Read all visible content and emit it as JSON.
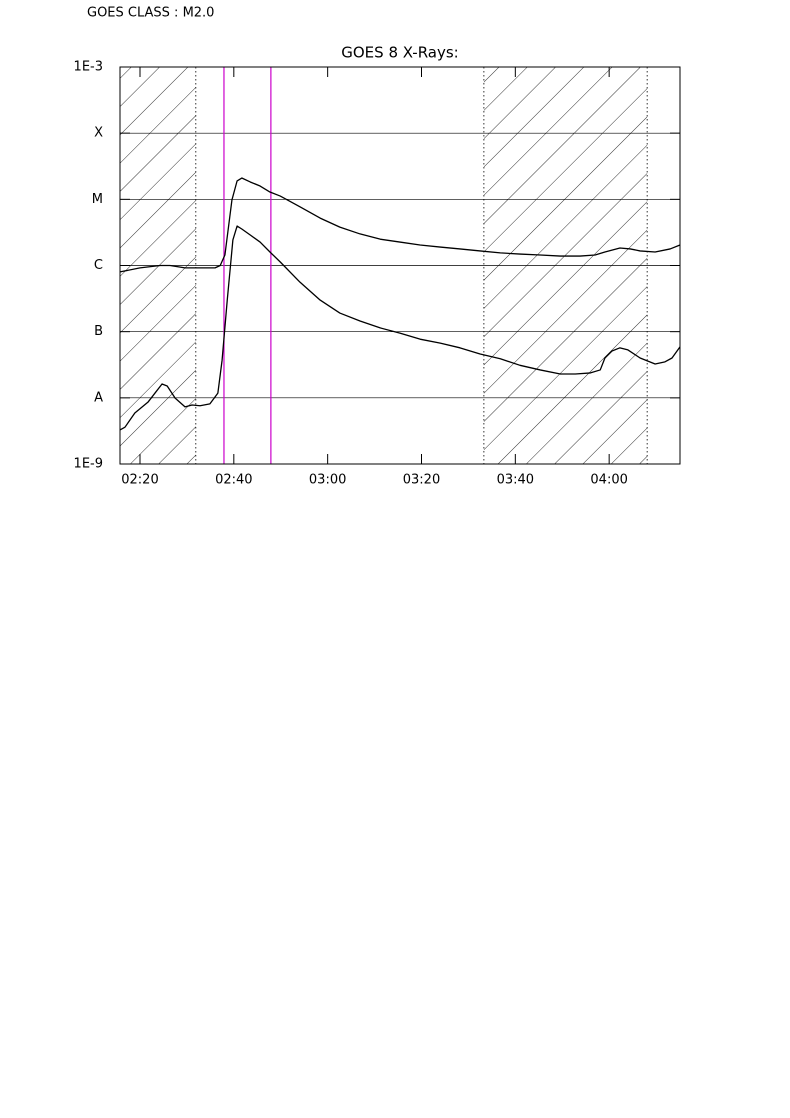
{
  "chart_data": {
    "type": "line",
    "header": "GOES CLASS : M2.0",
    "title": "GOES 8 X-Rays:",
    "log_y": true,
    "grid": true,
    "xlim": [
      15.74,
      135.1
    ],
    "xticks": [
      {
        "value": 20,
        "label": "02:20"
      },
      {
        "value": 40,
        "label": "02:40"
      },
      {
        "value": 60,
        "label": "03:00"
      },
      {
        "value": 80,
        "label": "03:20"
      },
      {
        "value": 100,
        "label": "03:40"
      },
      {
        "value": 120,
        "label": "04:00"
      }
    ],
    "ylim": [
      1e-09,
      0.001
    ],
    "yticks": [
      {
        "value": 1e-09,
        "label": "1E-9"
      },
      {
        "value": 1e-08,
        "label": "A"
      },
      {
        "value": 1e-07,
        "label": "B"
      },
      {
        "value": 1e-06,
        "label": "C"
      },
      {
        "value": 1e-05,
        "label": "M"
      },
      {
        "value": 0.0001,
        "label": "X"
      },
      {
        "value": 0.001,
        "label": "1E-3"
      }
    ],
    "shaded_regions": [
      [
        15.74,
        31.9
      ],
      [
        93.3,
        128.1
      ]
    ],
    "markers": [
      37.9,
      47.9
    ],
    "marker_color": "#cc00cc",
    "series": [
      {
        "color": "#000000",
        "x": [
          15.74,
          20,
          24.3,
          26.4,
          29.6,
          32.8,
          36.0,
          37.1,
          38.1,
          39.6,
          40.7,
          41.7,
          43.5,
          45.6,
          47.7,
          49.9,
          54.1,
          58.4,
          62.6,
          66.9,
          71.2,
          75.4,
          79.7,
          84.0,
          88.2,
          92.5,
          96.8,
          101.0,
          105.3,
          109.6,
          113.8,
          117.0,
          119.1,
          122.3,
          124.5,
          126.6,
          129.8,
          133.0,
          135.1
        ],
        "values": [
          8e-07,
          9.2e-07,
          1e-06,
          1e-06,
          9.2e-07,
          9.2e-07,
          9.2e-07,
          1e-06,
          1.44e-06,
          9.8e-06,
          1.9e-05,
          2.1e-05,
          1.83e-05,
          1.59e-05,
          1.29e-05,
          1.12e-05,
          7.7e-06,
          5.2e-06,
          3.8e-06,
          3e-06,
          2.5e-06,
          2.26e-06,
          2.04e-06,
          1.9e-06,
          1.78e-06,
          1.66e-06,
          1.55e-06,
          1.49e-06,
          1.44e-06,
          1.39e-06,
          1.39e-06,
          1.44e-06,
          1.6e-06,
          1.84e-06,
          1.78e-06,
          1.66e-06,
          1.6e-06,
          1.78e-06,
          2.04e-06
        ]
      },
      {
        "color": "#000000",
        "x": [
          15.74,
          16.8,
          18.9,
          21.7,
          23.2,
          24.7,
          25.8,
          27.5,
          29.6,
          31.1,
          32.8,
          34.9,
          36.6,
          37.5,
          38.6,
          39.8,
          40.7,
          41.7,
          43.5,
          45.6,
          47.7,
          49.9,
          54.1,
          58.4,
          62.6,
          66.9,
          71.2,
          75.4,
          79.7,
          84.0,
          88.2,
          92.5,
          96.8,
          101.0,
          105.3,
          109.6,
          112.8,
          116.0,
          118.1,
          119.1,
          120.6,
          122.3,
          124.0,
          126.6,
          129.8,
          131.9,
          133.4,
          135.1
        ],
        "values": [
          3.27e-09,
          3.6e-09,
          5.9e-09,
          8.6e-09,
          1.18e-08,
          1.62e-08,
          1.51e-08,
          9.9e-09,
          7.3e-09,
          7.8e-09,
          7.6e-09,
          8.1e-09,
          1.18e-08,
          3.7e-08,
          3e-07,
          2.43e-06,
          3.95e-06,
          3.56e-06,
          2.89e-06,
          2.26e-06,
          1.6e-06,
          1.13e-06,
          5.6e-07,
          3e-07,
          1.91e-07,
          1.45e-07,
          1.14e-07,
          9.5e-08,
          7.7e-08,
          6.7e-08,
          5.7e-08,
          4.6e-08,
          3.9e-08,
          3.1e-08,
          2.64e-08,
          2.29e-08,
          2.29e-08,
          2.38e-08,
          2.64e-08,
          4e-08,
          5.1e-08,
          5.7e-08,
          5.3e-08,
          4e-08,
          3.25e-08,
          3.5e-08,
          4e-08,
          5.9e-08
        ]
      }
    ]
  }
}
